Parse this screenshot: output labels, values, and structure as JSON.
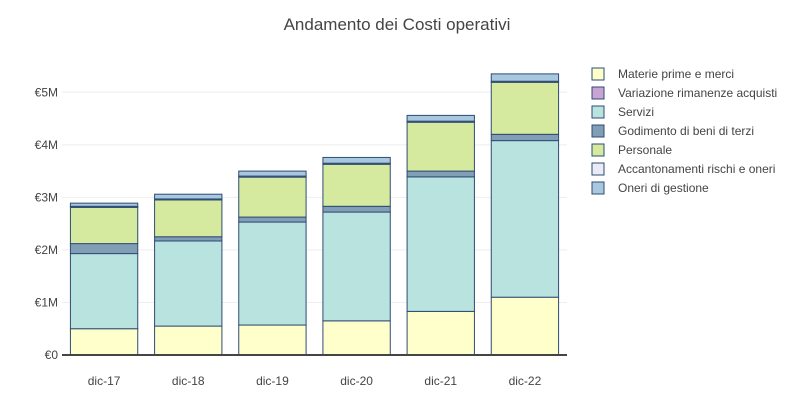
{
  "chart_data": {
    "type": "bar",
    "stacked": true,
    "title": "Andamento dei Costi operativi",
    "xlabel": "",
    "ylabel": "",
    "categories": [
      "dic-17",
      "dic-18",
      "dic-19",
      "dic-20",
      "dic-21",
      "dic-22"
    ],
    "ylim": [
      0,
      5500000
    ],
    "yticks": [
      0,
      1000000,
      2000000,
      3000000,
      4000000,
      5000000
    ],
    "ytick_labels": [
      "€0",
      "€1M",
      "€2M",
      "€3M",
      "€4M",
      "€5M"
    ],
    "grid": true,
    "legend_position": "right",
    "series": [
      {
        "name": "Materie prime e merci",
        "color": "#ffffcc",
        "values": [
          500000,
          550000,
          570000,
          650000,
          830000,
          1100000
        ]
      },
      {
        "name": "Variazione rimanenze acquisti",
        "color": "#c9a3d4",
        "values": [
          0,
          0,
          0,
          0,
          0,
          0
        ]
      },
      {
        "name": "Servizi",
        "color": "#b8e3df",
        "values": [
          1430000,
          1620000,
          1960000,
          2070000,
          2560000,
          2980000
        ]
      },
      {
        "name": "Godimento di beni di terzi",
        "color": "#819eb7",
        "values": [
          190000,
          80000,
          95000,
          110000,
          110000,
          120000
        ]
      },
      {
        "name": "Personale",
        "color": "#d6ea9f",
        "values": [
          690000,
          700000,
          760000,
          800000,
          930000,
          990000
        ]
      },
      {
        "name": "Accantonamenti rischi e oneri",
        "color": "#e9ecf7",
        "values": [
          20000,
          20000,
          20000,
          20000,
          20000,
          20000
        ]
      },
      {
        "name": "Oneri di gestione",
        "color": "#a8c8e0",
        "values": [
          60000,
          90000,
          95000,
          110000,
          110000,
          140000
        ]
      }
    ]
  }
}
